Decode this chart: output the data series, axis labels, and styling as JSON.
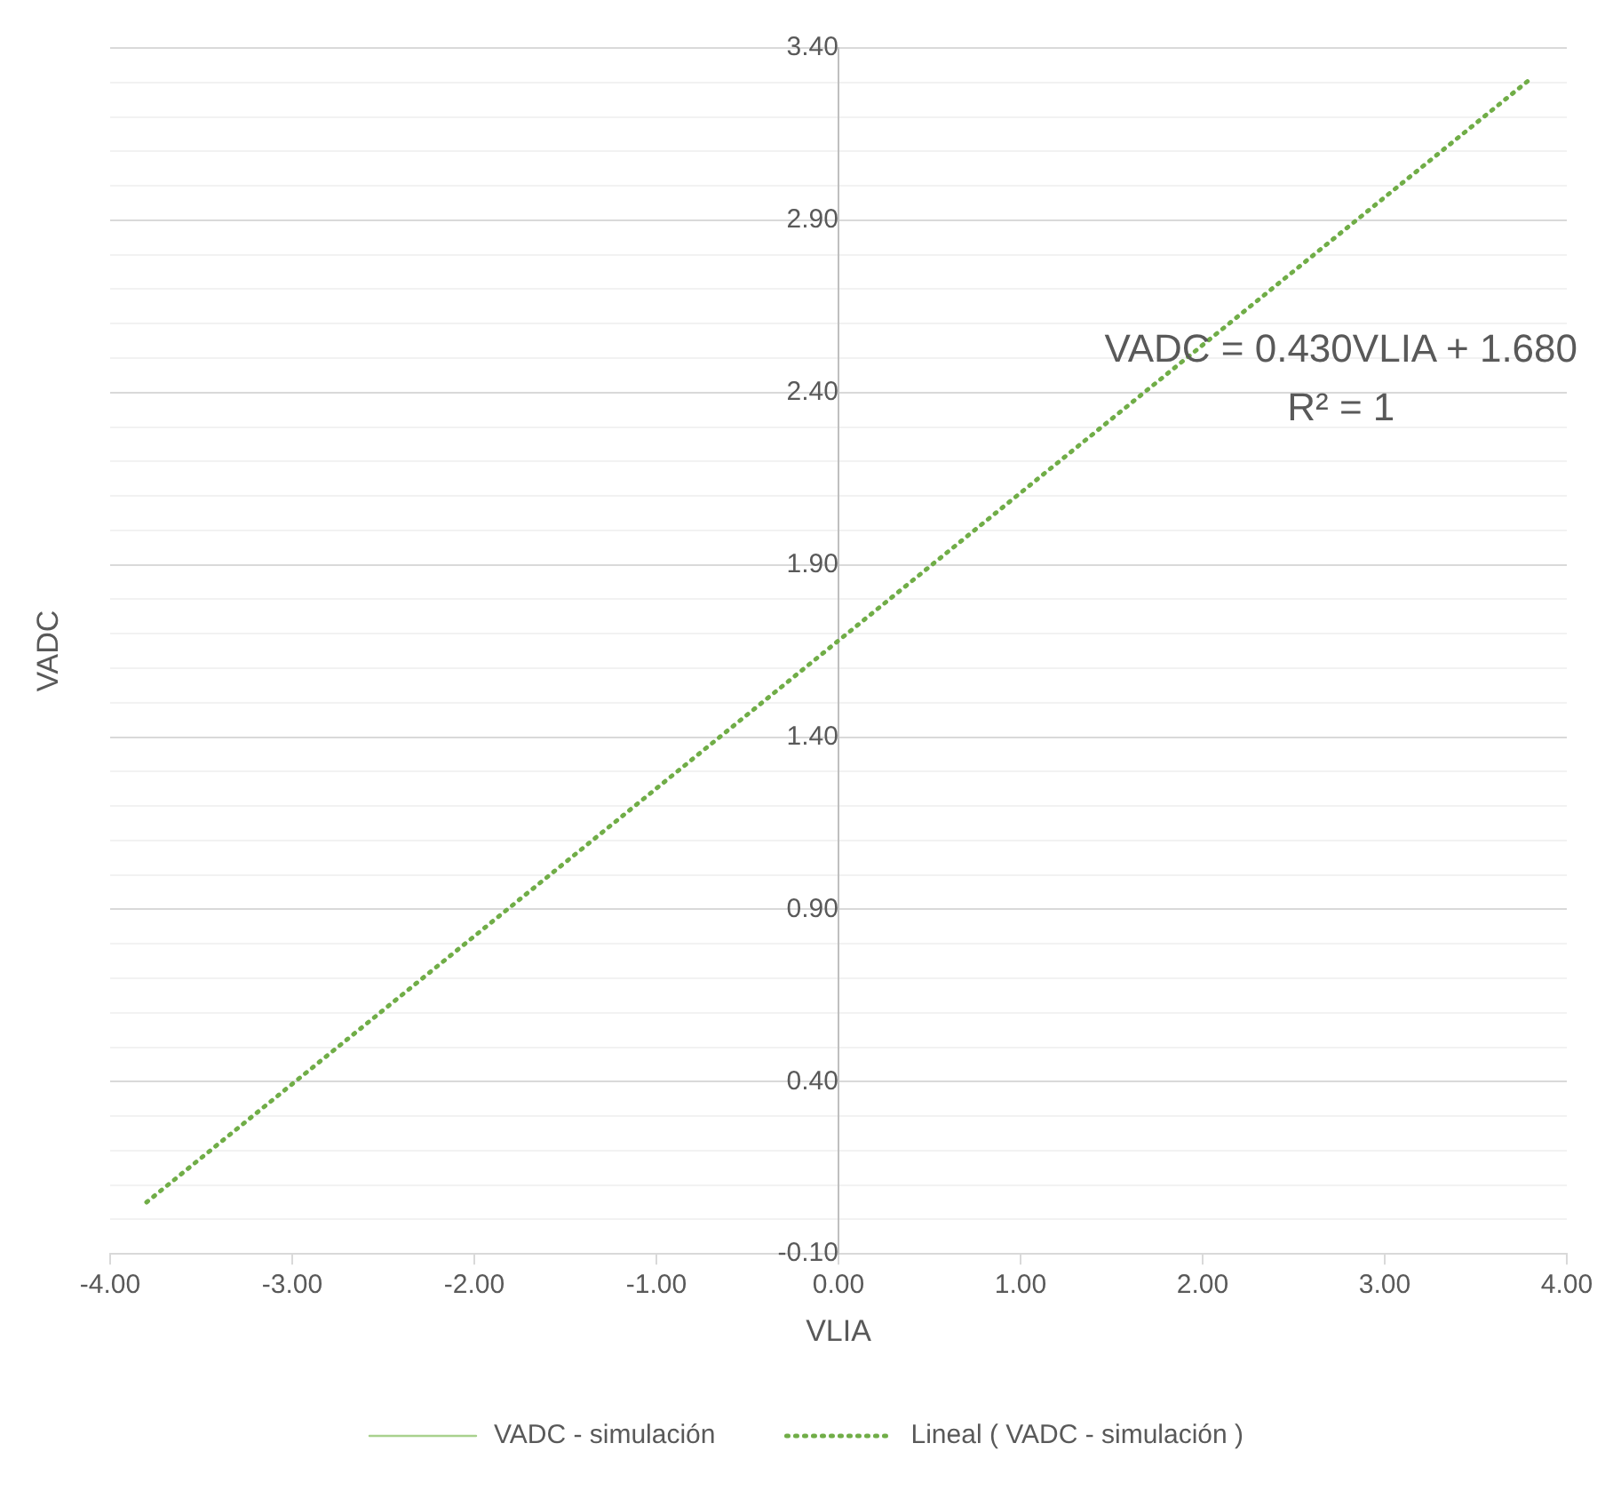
{
  "chart_data": {
    "type": "line",
    "xlabel": "VLIA",
    "ylabel": "VADC",
    "xlim": [
      -4,
      4
    ],
    "xticks": [
      {
        "value": -4,
        "label": "-4.00"
      },
      {
        "value": -3,
        "label": "-3.00"
      },
      {
        "value": -2,
        "label": "-2.00"
      },
      {
        "value": -1,
        "label": "-1.00"
      },
      {
        "value": 0,
        "label": "0.00"
      },
      {
        "value": 1,
        "label": "1.00"
      },
      {
        "value": 2,
        "label": "2.00"
      },
      {
        "value": 3,
        "label": "3.00"
      },
      {
        "value": 4,
        "label": "4.00"
      }
    ],
    "ylim": [
      -0.1,
      3.4
    ],
    "yticks": [
      {
        "value": -0.1,
        "label": "-0.10"
      },
      {
        "value": 0,
        "label": null
      },
      {
        "value": 0.1,
        "label": null
      },
      {
        "value": 0.2,
        "label": null
      },
      {
        "value": 0.3,
        "label": null
      },
      {
        "value": 0.4,
        "label": "0.40"
      },
      {
        "value": 0.5,
        "label": null
      },
      {
        "value": 0.6,
        "label": null
      },
      {
        "value": 0.7,
        "label": null
      },
      {
        "value": 0.8,
        "label": null
      },
      {
        "value": 0.9,
        "label": "0.90"
      },
      {
        "value": 1.0,
        "label": null
      },
      {
        "value": 1.1,
        "label": null
      },
      {
        "value": 1.2,
        "label": null
      },
      {
        "value": 1.3,
        "label": null
      },
      {
        "value": 1.4,
        "label": "1.40"
      },
      {
        "value": 1.5,
        "label": null
      },
      {
        "value": 1.6,
        "label": null
      },
      {
        "value": 1.7,
        "label": null
      },
      {
        "value": 1.8,
        "label": null
      },
      {
        "value": 1.9,
        "label": "1.90"
      },
      {
        "value": 2.0,
        "label": null
      },
      {
        "value": 2.1,
        "label": null
      },
      {
        "value": 2.2,
        "label": null
      },
      {
        "value": 2.3,
        "label": null
      },
      {
        "value": 2.4,
        "label": "2.40"
      },
      {
        "value": 2.5,
        "label": null
      },
      {
        "value": 2.6,
        "label": null
      },
      {
        "value": 2.7,
        "label": null
      },
      {
        "value": 2.8,
        "label": null
      },
      {
        "value": 2.9,
        "label": "2.90"
      },
      {
        "value": 3.0,
        "label": null
      },
      {
        "value": 3.1,
        "label": null
      },
      {
        "value": 3.2,
        "label": null
      },
      {
        "value": 3.3,
        "label": null
      },
      {
        "value": 3.4,
        "label": "3.40"
      }
    ],
    "grid": "y",
    "legend": "bottom",
    "marker": "none",
    "series": [
      {
        "name": "VADC - simulación",
        "color": "#a9d18e",
        "values": [
          null,
          null
        ],
        "line_style": "solid"
      },
      {
        "name": "Lineal ( VADC - simulación )",
        "type": "line",
        "color": "#70ad47",
        "x": [
          -3.8,
          3.8
        ],
        "values": [
          0.05,
          3.31
        ],
        "line_style": "dotted"
      }
    ],
    "annotations": [
      "VADC = 0.430VLIA + 1.680",
      "R² = 1"
    ]
  }
}
